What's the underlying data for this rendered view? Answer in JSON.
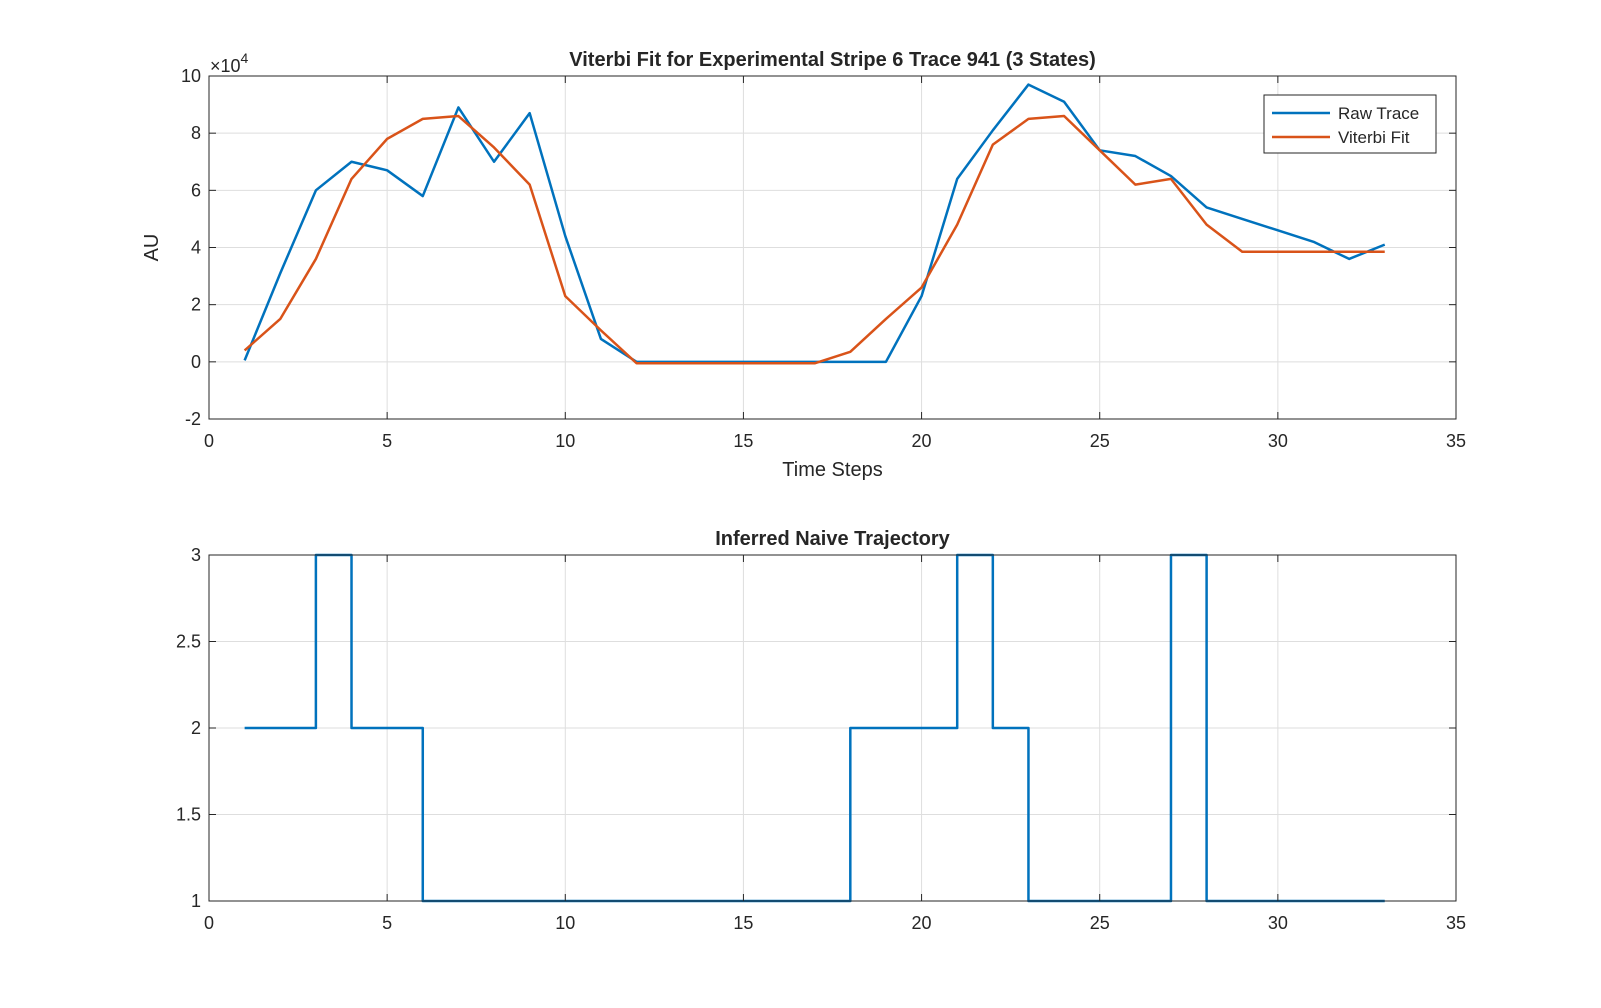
{
  "chart_data": [
    {
      "type": "line",
      "title": "Viterbi Fit for Experimental Stripe 6 Trace 941 (3 States)",
      "xlabel": "Time Steps",
      "ylabel": "AU",
      "exponent_label": "×10",
      "exponent_power": "4",
      "xlim": [
        0,
        35
      ],
      "ylim": [
        -2,
        10
      ],
      "x_ticks": [
        0,
        5,
        10,
        15,
        20,
        25,
        30,
        35
      ],
      "y_ticks": [
        -2,
        0,
        2,
        4,
        6,
        8,
        10
      ],
      "y_tick_labels": [
        "-2",
        "0",
        "2",
        "4",
        "6",
        "8",
        "10"
      ],
      "grid": true,
      "legend_position": "top-right",
      "x": [
        1,
        2,
        3,
        4,
        5,
        6,
        7,
        8,
        9,
        10,
        11,
        12,
        13,
        14,
        15,
        16,
        17,
        18,
        19,
        20,
        21,
        22,
        23,
        24,
        25,
        26,
        27,
        28,
        29,
        30,
        31,
        32,
        33
      ],
      "series": [
        {
          "name": "Raw Trace",
          "color": "#0072BD",
          "values": [
            0.05,
            3.1,
            6.0,
            7.0,
            6.7,
            5.8,
            8.9,
            7.0,
            8.7,
            4.4,
            0.8,
            0.0,
            0.0,
            0.0,
            0.0,
            0.0,
            0.0,
            0.0,
            0.0,
            2.3,
            6.4,
            8.1,
            9.7,
            9.1,
            7.4,
            7.2,
            6.5,
            5.4,
            5.0,
            4.6,
            4.2,
            3.6,
            4.1
          ]
        },
        {
          "name": "Viterbi Fit",
          "color": "#D95319",
          "values": [
            0.4,
            1.5,
            3.6,
            6.4,
            7.8,
            8.5,
            8.6,
            7.5,
            6.2,
            2.3,
            1.1,
            -0.05,
            -0.05,
            -0.05,
            -0.05,
            -0.05,
            -0.05,
            0.35,
            1.5,
            2.6,
            4.8,
            7.6,
            8.5,
            8.6,
            7.4,
            6.2,
            6.4,
            4.8,
            3.85,
            3.85,
            3.85,
            3.85,
            3.85
          ]
        }
      ]
    },
    {
      "type": "line",
      "title": "Inferred Naive Trajectory",
      "xlabel": "",
      "ylabel": "",
      "xlim": [
        0,
        35
      ],
      "ylim": [
        1,
        3
      ],
      "x_ticks": [
        0,
        5,
        10,
        15,
        20,
        25,
        30,
        35
      ],
      "y_ticks": [
        1,
        1.5,
        2,
        2.5,
        3
      ],
      "y_tick_labels": [
        "1",
        "1.5",
        "2",
        "2.5",
        "3"
      ],
      "grid": true,
      "step": true,
      "x": [
        1,
        2,
        3,
        4,
        5,
        6,
        7,
        8,
        9,
        10,
        11,
        12,
        13,
        14,
        15,
        16,
        17,
        18,
        19,
        20,
        21,
        22,
        23,
        24,
        25,
        26,
        27,
        28,
        29,
        30,
        31,
        32,
        33
      ],
      "series": [
        {
          "color": "#0072BD",
          "values": [
            2,
            2,
            3,
            2,
            2,
            1,
            1,
            1,
            1,
            1,
            1,
            1,
            1,
            1,
            1,
            1,
            1,
            2,
            2,
            2,
            3,
            2,
            1,
            1,
            1,
            1,
            3,
            1,
            1,
            1,
            1,
            1,
            1
          ]
        }
      ]
    }
  ]
}
